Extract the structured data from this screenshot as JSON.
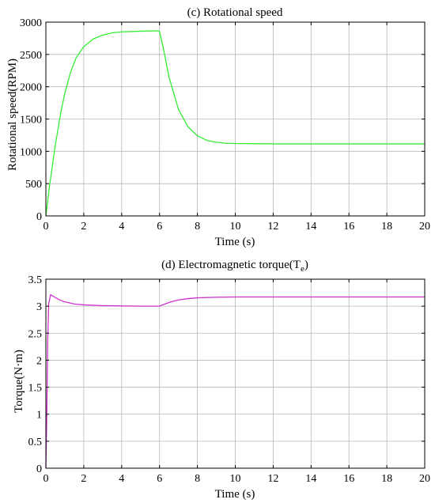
{
  "chart_data": [
    {
      "type": "line",
      "title": "(c) Rotational speed",
      "xlabel": "Time (s)",
      "ylabel": "Rotational speed(RPM)",
      "xlim": [
        0,
        20
      ],
      "ylim": [
        0,
        3000
      ],
      "xticks": [
        0,
        2,
        4,
        6,
        8,
        10,
        12,
        14,
        16,
        18,
        20
      ],
      "yticks": [
        0,
        500,
        1000,
        1500,
        2000,
        2500,
        3000
      ],
      "grid": true,
      "color": "#33ee33",
      "series": [
        {
          "values": [
            [
              0,
              0
            ],
            [
              0.2,
              480
            ],
            [
              0.5,
              1100
            ],
            [
              0.8,
              1620
            ],
            [
              1.0,
              1900
            ],
            [
              1.3,
              2220
            ],
            [
              1.6,
              2450
            ],
            [
              2.0,
              2620
            ],
            [
              2.5,
              2740
            ],
            [
              3.0,
              2800
            ],
            [
              3.5,
              2835
            ],
            [
              4.0,
              2850
            ],
            [
              5.0,
              2860
            ],
            [
              5.9,
              2865
            ],
            [
              6.0,
              2855
            ],
            [
              6.2,
              2600
            ],
            [
              6.5,
              2150
            ],
            [
              7.0,
              1650
            ],
            [
              7.5,
              1380
            ],
            [
              8.0,
              1240
            ],
            [
              8.5,
              1170
            ],
            [
              9.0,
              1140
            ],
            [
              9.5,
              1125
            ],
            [
              10.0,
              1120
            ],
            [
              12.0,
              1115
            ],
            [
              14.0,
              1115
            ],
            [
              16.0,
              1115
            ],
            [
              18.0,
              1115
            ],
            [
              20.0,
              1115
            ]
          ]
        }
      ]
    },
    {
      "type": "line",
      "title_main": "(d) Electromagnetic torque(T",
      "title_sub": "e",
      "title_end": ")",
      "xlabel": "Time (s)",
      "ylabel": "Torque(N·m)",
      "xlim": [
        0,
        20
      ],
      "ylim": [
        0,
        3.5
      ],
      "xticks": [
        0,
        2,
        4,
        6,
        8,
        10,
        12,
        14,
        16,
        18,
        20
      ],
      "yticks": [
        0,
        0.5,
        1,
        1.5,
        2,
        2.5,
        3,
        3.5
      ],
      "ytick_labels": [
        "0",
        "0.5",
        "1",
        "1.5",
        "2",
        "2.5",
        "3",
        "3.5"
      ],
      "grid": true,
      "color": "#cc33cc",
      "series": [
        {
          "values": [
            [
              0,
              0
            ],
            [
              0.05,
              1.0
            ],
            [
              0.1,
              2.4
            ],
            [
              0.15,
              3.05
            ],
            [
              0.25,
              3.21
            ],
            [
              0.4,
              3.18
            ],
            [
              0.7,
              3.12
            ],
            [
              1.0,
              3.08
            ],
            [
              1.5,
              3.04
            ],
            [
              2.0,
              3.025
            ],
            [
              3.0,
              3.01
            ],
            [
              4.0,
              3.005
            ],
            [
              5.0,
              3.0
            ],
            [
              6.0,
              3.0
            ],
            [
              6.2,
              3.03
            ],
            [
              6.6,
              3.08
            ],
            [
              7.0,
              3.115
            ],
            [
              7.5,
              3.14
            ],
            [
              8.0,
              3.155
            ],
            [
              9.0,
              3.165
            ],
            [
              10.0,
              3.17
            ],
            [
              12.0,
              3.17
            ],
            [
              14.0,
              3.17
            ],
            [
              16.0,
              3.17
            ],
            [
              18.0,
              3.17
            ],
            [
              20.0,
              3.17
            ]
          ]
        }
      ]
    }
  ]
}
